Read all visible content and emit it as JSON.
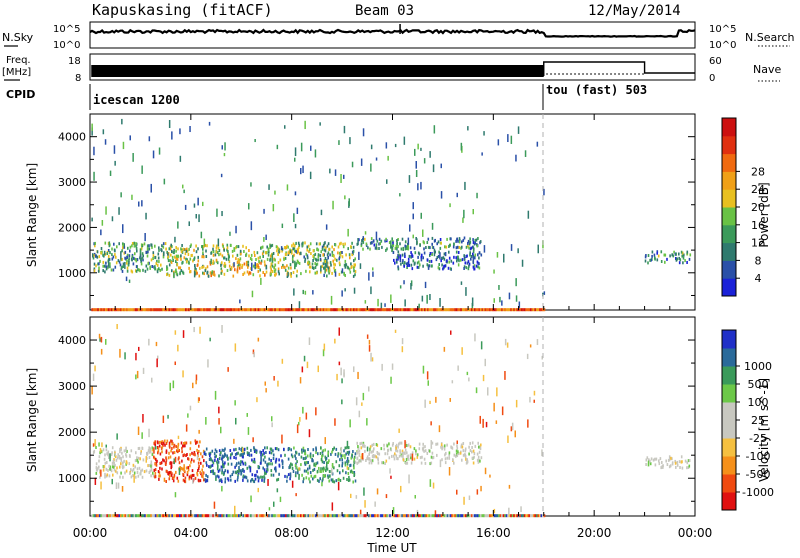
{
  "header": {
    "station": "Kapuskasing (fitACF)",
    "beam": "Beam 03",
    "date": "12/May/2014"
  },
  "summary": {
    "nsky_label": "N.Sky",
    "nsearch_label": "N.Search",
    "noise_ticks": [
      "10^5",
      "10^0"
    ],
    "freq_label_top": "Freq.",
    "freq_label_unit": "[MHz]",
    "freq_ticks": [
      "18",
      "8"
    ],
    "nave_label": "Nave",
    "nave_ticks": [
      "60",
      "0"
    ],
    "cpid_label": "CPID",
    "cpid_segments": [
      {
        "name": "icescan 1200",
        "start_hour": 0,
        "end_hour": 18
      },
      {
        "name": "tou (fast) 503",
        "start_hour": 18,
        "end_hour": 24
      }
    ],
    "noise_level_fraction": 0.9,
    "nave_steps": [
      {
        "from": 18,
        "to": 22,
        "value": 45
      },
      {
        "from": 22,
        "to": 24,
        "value": 8
      }
    ]
  },
  "chart_data": [
    {
      "type": "heatmap",
      "name": "power",
      "ylabel": "Slant Range [km]",
      "ylim": [
        180,
        4500
      ],
      "yticks": [
        1000,
        2000,
        3000,
        4000
      ],
      "xlim": [
        0,
        24
      ],
      "colorbar_label": "Power [dB]",
      "colorbar_ticks": [
        "4",
        "8",
        "12",
        "16",
        "20",
        "24",
        "28"
      ],
      "colorbar_colors": [
        "#1b22d8",
        "#2a50a8",
        "#2f7a6e",
        "#3b9a5a",
        "#69c245",
        "#e8c020",
        "#f0a018",
        "#f06a10",
        "#e03010",
        "#cc1010"
      ],
      "bands": [
        {
          "x0": 0.1,
          "x1": 3.0,
          "y0": 1050,
          "y1": 1700,
          "level": 0.35
        },
        {
          "x0": 3.0,
          "x1": 8.0,
          "y0": 950,
          "y1": 1650,
          "level": 0.45
        },
        {
          "x0": 8.0,
          "x1": 10.5,
          "y0": 950,
          "y1": 1700,
          "level": 0.4
        },
        {
          "x0": 10.5,
          "x1": 15.5,
          "y0": 1550,
          "y1": 1800,
          "level": 0.3
        },
        {
          "x0": 12.0,
          "x1": 15.5,
          "y0": 1100,
          "y1": 1500,
          "level": 0.2
        },
        {
          "x0": 22.0,
          "x1": 23.8,
          "y0": 1250,
          "y1": 1500,
          "level": 0.3
        }
      ],
      "ground_strip_range_km": 220
    },
    {
      "type": "heatmap",
      "name": "velocity",
      "ylabel": "Slant Range [km]",
      "xlabel": "Time UT",
      "ylim": [
        180,
        4500
      ],
      "yticks": [
        1000,
        2000,
        3000,
        4000
      ],
      "xlim": [
        0,
        24
      ],
      "xticks": [
        "00:00",
        "04:00",
        "08:00",
        "12:00",
        "16:00",
        "20:00",
        "00:00"
      ],
      "colorbar_label": "Velocity [m s^-1]",
      "colorbar_ticks": [
        "-1000",
        "-500",
        "-100",
        "-25",
        "25",
        "100",
        "500",
        "1000"
      ],
      "colorbar_colors": [
        "#e01010",
        "#f04a10",
        "#f5901a",
        "#f5c040",
        "#c8c8c0",
        "#c8c8c0",
        "#6cc848",
        "#3a9a5a",
        "#2a6a9a",
        "#2030c8"
      ],
      "bands": [
        {
          "x0": 0.1,
          "x1": 2.5,
          "y0": 1050,
          "y1": 1700,
          "vel": 0.5
        },
        {
          "x0": 2.5,
          "x1": 4.5,
          "y0": 950,
          "y1": 1850,
          "vel": 0.05
        },
        {
          "x0": 4.5,
          "x1": 8.0,
          "y0": 950,
          "y1": 1700,
          "vel": 0.85
        },
        {
          "x0": 8.0,
          "x1": 10.5,
          "y0": 950,
          "y1": 1700,
          "vel": 0.75
        },
        {
          "x0": 10.5,
          "x1": 15.5,
          "y0": 1350,
          "y1": 1800,
          "vel": 0.5
        },
        {
          "x0": 22.0,
          "x1": 23.8,
          "y0": 1250,
          "y1": 1500,
          "vel": 0.5
        }
      ],
      "ground_strip_range_km": 220
    }
  ],
  "time_axis": {
    "xlabel": "Time UT",
    "xticks": [
      "00:00",
      "04:00",
      "08:00",
      "12:00",
      "16:00",
      "20:00",
      "00:00"
    ]
  }
}
